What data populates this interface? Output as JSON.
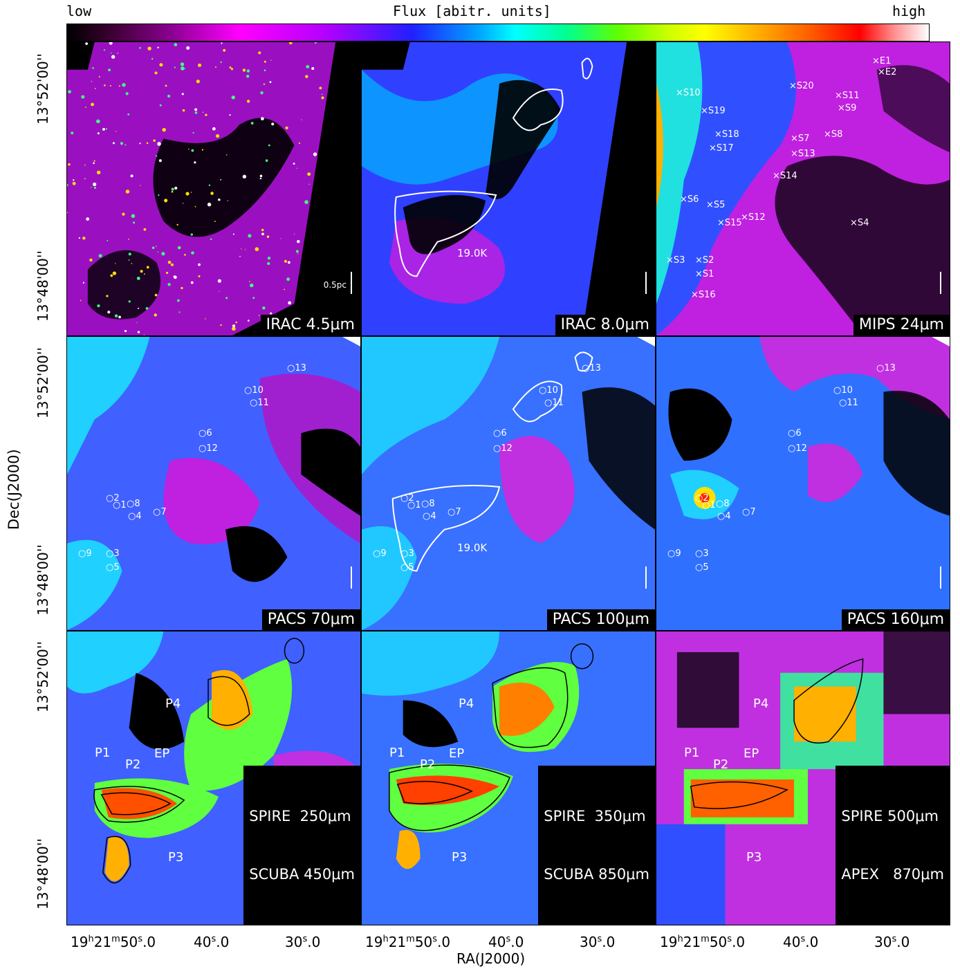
{
  "colorbar": {
    "title": "Flux [abitr. units]",
    "low": "low",
    "high": "high"
  },
  "axes": {
    "ylabel": "Dec(J2000)",
    "xlabel": "RA(J2000)",
    "yticks": [
      "13°52'00''",
      "13°48'00''"
    ],
    "xticks": {
      "major_h": "19",
      "major_m": "21",
      "major_s": "50.0",
      "t40": "40",
      "t40s": "s",
      "t40f": ".0",
      "t30": "30",
      "t30s": "s",
      "t30f": ".0"
    }
  },
  "panels": {
    "irac45": {
      "label": "IRAC 4.5μm",
      "scale": "0.5pc"
    },
    "irac80": {
      "label": "IRAC 8.0μm",
      "temp": "19.0K"
    },
    "mips24": {
      "label": "MIPS 24μm",
      "sources": [
        "E1",
        "E2",
        "S10",
        "S20",
        "S11",
        "S9",
        "S19",
        "S18",
        "S7",
        "S8",
        "S17",
        "S13",
        "S14",
        "S6",
        "S5",
        "S15",
        "S12",
        "S4",
        "S3",
        "S2",
        "S1",
        "S16"
      ]
    },
    "pacs70": {
      "label": "PACS 70μm",
      "sources": [
        "13",
        "10",
        "11",
        "6",
        "12",
        "2",
        "1",
        "8",
        "4",
        "7",
        "9",
        "3",
        "5"
      ]
    },
    "pacs100": {
      "label": "PACS 100μm",
      "temp": "19.0K",
      "sources": [
        "13",
        "10",
        "11",
        "6",
        "12",
        "2",
        "1",
        "8",
        "4",
        "7",
        "9",
        "3",
        "5"
      ]
    },
    "pacs160": {
      "label": "PACS 160μm",
      "sources": [
        "13",
        "10",
        "11",
        "6",
        "12",
        "2",
        "1",
        "8",
        "4",
        "7",
        "9",
        "3",
        "5"
      ]
    },
    "spire250": {
      "line1": "SPIRE  250μm",
      "line2": "SCUBA 450μm",
      "peaks": [
        "P1",
        "P2",
        "EP",
        "P3",
        "P4"
      ]
    },
    "spire350": {
      "line1": "SPIRE  350μm",
      "line2": "SCUBA 850μm",
      "peaks": [
        "P1",
        "P2",
        "EP",
        "P3",
        "P4"
      ]
    },
    "spire500": {
      "line1": "SPIRE 500μm",
      "line2": "APEX   870μm",
      "peaks": [
        "P1",
        "P2",
        "EP",
        "P3",
        "P4"
      ]
    }
  }
}
